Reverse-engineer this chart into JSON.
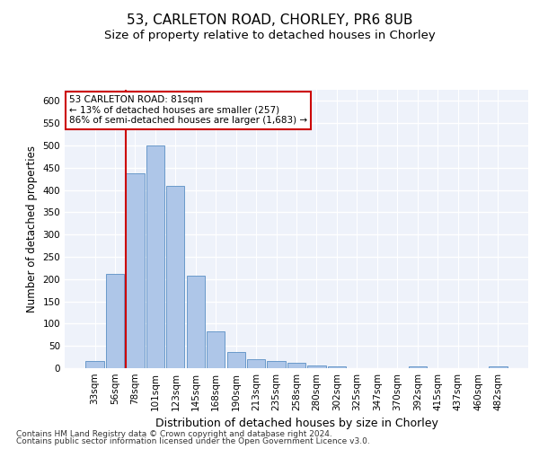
{
  "title1": "53, CARLETON ROAD, CHORLEY, PR6 8UB",
  "title2": "Size of property relative to detached houses in Chorley",
  "xlabel": "Distribution of detached houses by size in Chorley",
  "ylabel": "Number of detached properties",
  "categories": [
    "33sqm",
    "56sqm",
    "78sqm",
    "101sqm",
    "123sqm",
    "145sqm",
    "168sqm",
    "190sqm",
    "213sqm",
    "235sqm",
    "258sqm",
    "280sqm",
    "302sqm",
    "325sqm",
    "347sqm",
    "370sqm",
    "392sqm",
    "415sqm",
    "437sqm",
    "460sqm",
    "482sqm"
  ],
  "values": [
    17,
    212,
    437,
    500,
    410,
    208,
    83,
    37,
    20,
    17,
    12,
    7,
    5,
    0,
    0,
    0,
    5,
    0,
    0,
    0,
    5
  ],
  "bar_color": "#aec6e8",
  "bar_edge_color": "#5a8fc4",
  "vline_index": 2,
  "annotation_line1": "53 CARLETON ROAD: 81sqm",
  "annotation_line2": "← 13% of detached houses are smaller (257)",
  "annotation_line3": "86% of semi-detached houses are larger (1,683) →",
  "vline_color": "#cc0000",
  "ylim": [
    0,
    625
  ],
  "yticks": [
    0,
    50,
    100,
    150,
    200,
    250,
    300,
    350,
    400,
    450,
    500,
    550,
    600
  ],
  "footer1": "Contains HM Land Registry data © Crown copyright and database right 2024.",
  "footer2": "Contains public sector information licensed under the Open Government Licence v3.0.",
  "bg_color": "#eef2fa",
  "grid_color": "#ffffff",
  "title1_fontsize": 11,
  "title2_fontsize": 9.5,
  "xlabel_fontsize": 9,
  "ylabel_fontsize": 8.5,
  "tick_fontsize": 7.5,
  "annot_fontsize": 7.5,
  "footer_fontsize": 6.5
}
